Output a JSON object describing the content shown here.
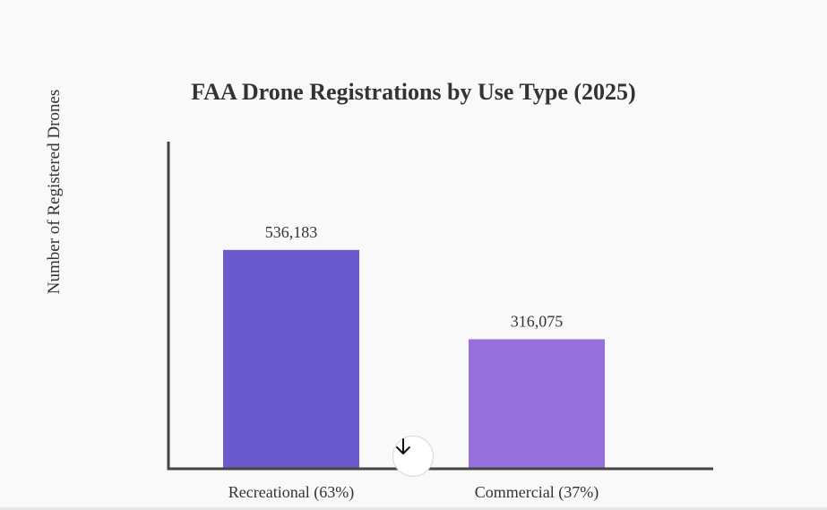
{
  "chart_data": {
    "type": "bar",
    "title": "FAA Drone Registrations by Use Type (2025)",
    "xlabel": "",
    "ylabel": "Number of Registered Drones",
    "categories": [
      "Recreational (63%)",
      "Commercial (37%)"
    ],
    "values": [
      536183,
      316075
    ],
    "value_labels": [
      "536,183",
      "316,075"
    ],
    "colors": [
      "#6a5acd",
      "#9370db"
    ],
    "ylim": [
      0,
      800000
    ],
    "grid": false,
    "legend": "none"
  },
  "scroll_button": {
    "icon": "arrow-down-icon"
  }
}
